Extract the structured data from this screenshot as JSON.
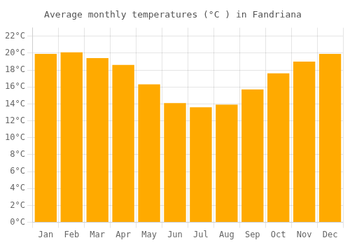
{
  "chart_data": {
    "type": "bar",
    "title": "Average monthly temperatures (°C ) in Fandriana",
    "categories": [
      "Jan",
      "Feb",
      "Mar",
      "Apr",
      "May",
      "Jun",
      "Jul",
      "Aug",
      "Sep",
      "Oct",
      "Nov",
      "Dec"
    ],
    "values": [
      19.9,
      20.1,
      19.4,
      18.6,
      16.3,
      14.1,
      13.6,
      13.9,
      15.7,
      17.6,
      19.0,
      19.9
    ],
    "color": "#FFAA00",
    "ylim": [
      0,
      23
    ],
    "yticks": [
      {
        "value": 0,
        "label": "0°C"
      },
      {
        "value": 2,
        "label": "2°C"
      },
      {
        "value": 4,
        "label": "4°C"
      },
      {
        "value": 6,
        "label": "6°C"
      },
      {
        "value": 8,
        "label": "8°C"
      },
      {
        "value": 10,
        "label": "10°C"
      },
      {
        "value": 12,
        "label": "12°C"
      },
      {
        "value": 14,
        "label": "14°C"
      },
      {
        "value": 16,
        "label": "16°C"
      },
      {
        "value": 18,
        "label": "18°C"
      },
      {
        "value": 20,
        "label": "20°C"
      },
      {
        "value": 22,
        "label": "22°C"
      }
    ],
    "grid": true
  }
}
